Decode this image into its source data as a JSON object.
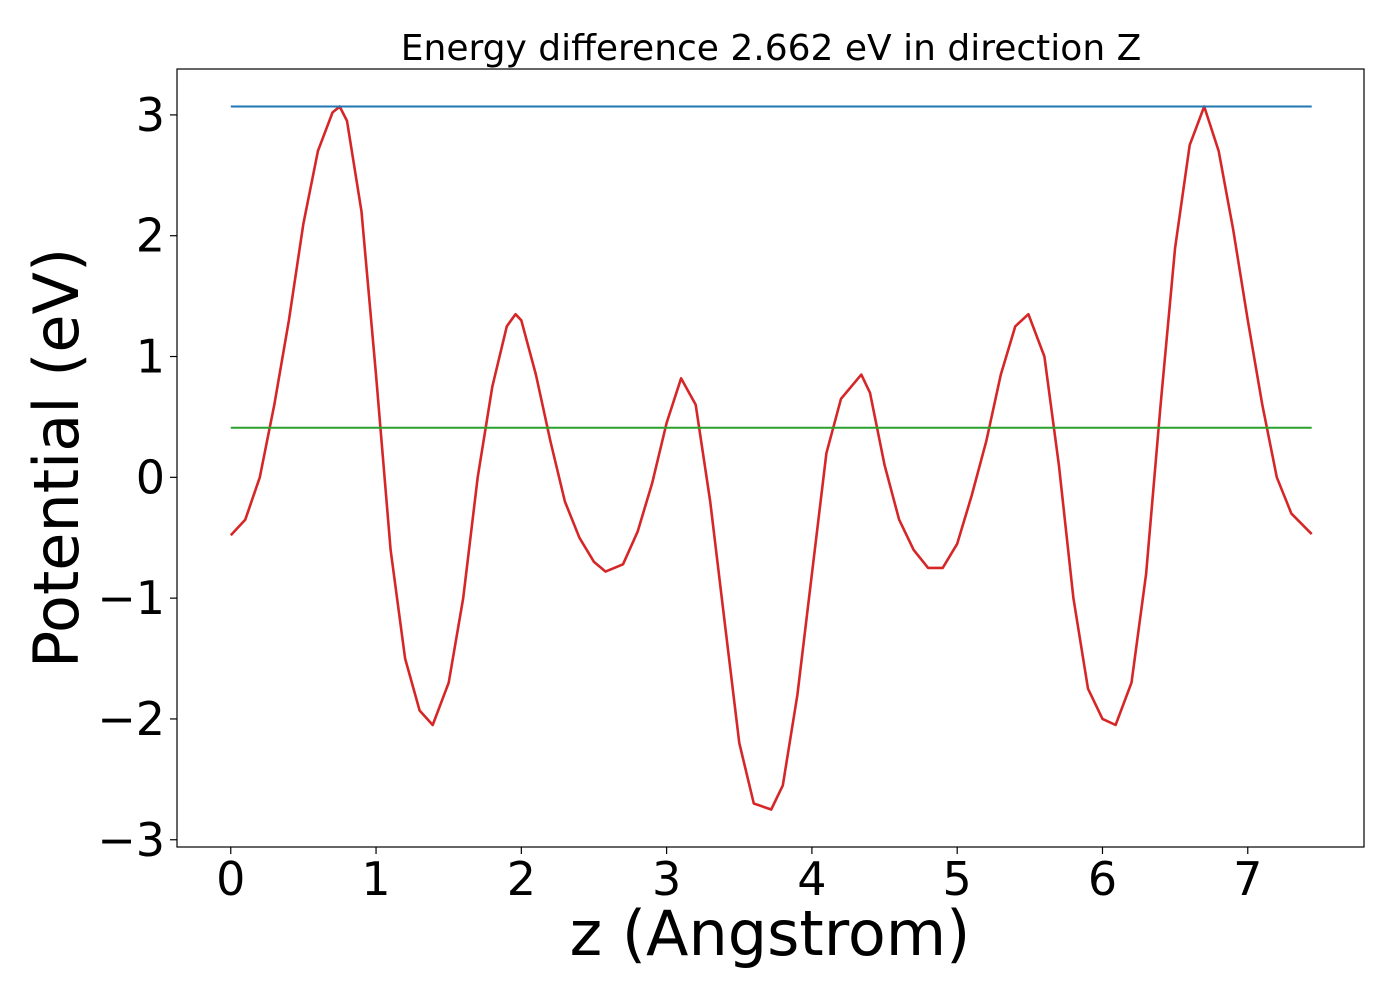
{
  "chart_data": {
    "type": "line",
    "title": "Energy difference 2.662 eV in direction Z",
    "xlabel": "z (Angstrom)",
    "ylabel": "Potential (eV)",
    "xlim": [
      -0.37,
      7.8
    ],
    "ylim": [
      -3.06,
      3.38
    ],
    "xticks": [
      0,
      1,
      2,
      3,
      4,
      5,
      6,
      7
    ],
    "xtick_labels": [
      "0",
      "1",
      "2",
      "3",
      "4",
      "5",
      "6",
      "7"
    ],
    "yticks": [
      -3,
      -2,
      -1,
      0,
      1,
      2,
      3
    ],
    "ytick_labels": [
      "−3",
      "−2",
      "−1",
      "0",
      "1",
      "2",
      "3"
    ],
    "grid": false,
    "series": [
      {
        "color": "#d62728",
        "x": [
          0,
          0.1,
          0.2,
          0.3,
          0.4,
          0.5,
          0.6,
          0.7,
          0.75,
          0.8,
          0.9,
          1.0,
          1.1,
          1.2,
          1.3,
          1.39,
          1.5,
          1.6,
          1.7,
          1.8,
          1.9,
          1.96,
          2.0,
          2.1,
          2.2,
          2.3,
          2.4,
          2.5,
          2.58,
          2.7,
          2.8,
          2.9,
          3.0,
          3.1,
          3.2,
          3.3,
          3.4,
          3.5,
          3.6,
          3.72,
          3.8,
          3.9,
          4.0,
          4.1,
          4.2,
          4.34,
          4.4,
          4.5,
          4.6,
          4.7,
          4.8,
          4.9,
          5.0,
          5.1,
          5.2,
          5.3,
          5.4,
          5.49,
          5.6,
          5.7,
          5.8,
          5.9,
          6.0,
          6.09,
          6.2,
          6.3,
          6.4,
          6.5,
          6.6,
          6.7,
          6.8,
          6.9,
          7.0,
          7.1,
          7.2,
          7.3,
          7.44
        ],
        "y": [
          -0.48,
          -0.35,
          0.0,
          0.6,
          1.3,
          2.1,
          2.7,
          3.02,
          3.07,
          2.95,
          2.2,
          0.85,
          -0.6,
          -1.5,
          -1.93,
          -2.05,
          -1.7,
          -1.0,
          0.0,
          0.75,
          1.25,
          1.35,
          1.3,
          0.85,
          0.3,
          -0.2,
          -0.5,
          -0.7,
          -0.78,
          -0.72,
          -0.45,
          -0.05,
          0.45,
          0.82,
          0.6,
          -0.2,
          -1.2,
          -2.2,
          -2.7,
          -2.75,
          -2.55,
          -1.8,
          -0.8,
          0.2,
          0.65,
          0.85,
          0.7,
          0.1,
          -0.35,
          -0.6,
          -0.75,
          -0.75,
          -0.55,
          -0.15,
          0.3,
          0.85,
          1.25,
          1.35,
          1.0,
          0.1,
          -1.0,
          -1.75,
          -2.0,
          -2.05,
          -1.7,
          -0.8,
          0.6,
          1.9,
          2.75,
          3.07,
          2.7,
          2.05,
          1.3,
          0.6,
          0.0,
          -0.3,
          -0.47
        ]
      },
      {
        "color": "#1f77b4",
        "x": [
          0,
          7.44
        ],
        "y": [
          3.07,
          3.07
        ]
      },
      {
        "color": "#2ca02c",
        "x": [
          0,
          7.44
        ],
        "y": [
          0.41,
          0.41
        ]
      }
    ]
  }
}
